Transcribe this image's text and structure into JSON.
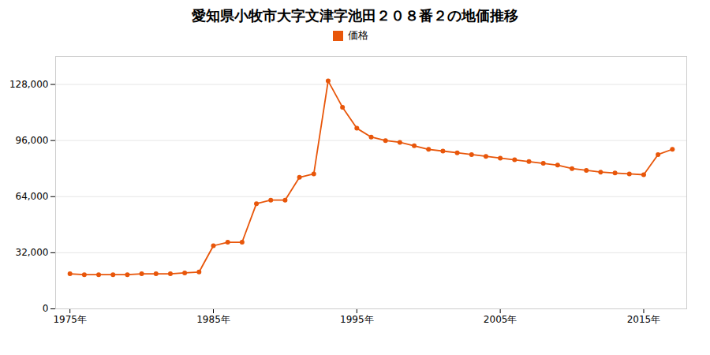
{
  "chart_data": {
    "type": "line",
    "title": "愛知県小牧市大字文津字池田２０８番２の地価推移",
    "x": [
      1975,
      1976,
      1977,
      1978,
      1979,
      1980,
      1981,
      1982,
      1983,
      1984,
      1985,
      1986,
      1987,
      1988,
      1989,
      1990,
      1991,
      1992,
      1993,
      1994,
      1995,
      1996,
      1997,
      1998,
      1999,
      2000,
      2001,
      2002,
      2003,
      2004,
      2005,
      2006,
      2007,
      2008,
      2009,
      2010,
      2011,
      2012,
      2013,
      2014,
      2015,
      2016,
      2017
    ],
    "series": [
      {
        "name": "価格",
        "color": "#E8560A",
        "marker": "circle",
        "values": [
          20000,
          19500,
          19500,
          19500,
          19500,
          20000,
          20000,
          20000,
          20500,
          21000,
          36000,
          38000,
          38000,
          60000,
          62000,
          62000,
          75000,
          77000,
          130000,
          115000,
          103000,
          98000,
          96000,
          95000,
          93000,
          91000,
          90000,
          89000,
          88000,
          87000,
          86000,
          85000,
          84000,
          83000,
          82000,
          80000,
          79000,
          78000,
          77500,
          77000,
          76500,
          88000,
          91000
        ]
      }
    ],
    "xlim": [
      1974,
      2018
    ],
    "xticks": [
      {
        "value": 1975,
        "label": "1975年"
      },
      {
        "value": 1985,
        "label": "1985年"
      },
      {
        "value": 1995,
        "label": "1995年"
      },
      {
        "value": 2005,
        "label": "2005年"
      },
      {
        "value": 2015,
        "label": "2015年"
      }
    ],
    "ylim": [
      0,
      144000
    ],
    "yticks": [
      0,
      {
        "value": 32000,
        "label": "32,000"
      },
      {
        "value": 64000,
        "label": "64,000"
      },
      {
        "value": 96000,
        "label": "96,000"
      },
      {
        "value": 128000,
        "label": "128,000"
      }
    ],
    "grid": "y",
    "legend": "top"
  }
}
